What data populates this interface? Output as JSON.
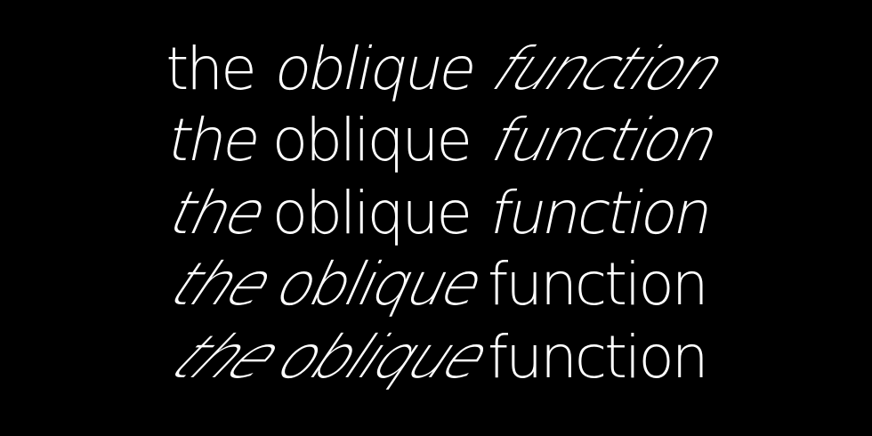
{
  "background": "#000000",
  "text_color": "#ffffff",
  "lines": [
    {
      "words": [
        "the",
        "oblique",
        "function"
      ]
    },
    {
      "words": [
        "the",
        "oblique",
        "function"
      ]
    },
    {
      "words": [
        "the",
        "oblique",
        "function"
      ]
    },
    {
      "words": [
        "the",
        "oblique",
        "function"
      ]
    },
    {
      "words": [
        "the",
        "oblique",
        "function"
      ]
    }
  ]
}
